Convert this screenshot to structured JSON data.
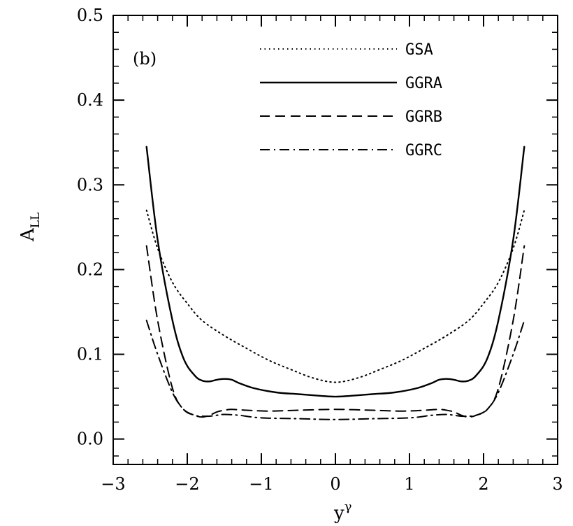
{
  "chart_data": {
    "type": "line",
    "panel_label": "(b)",
    "xlabel": "y",
    "xlabel_sup": "γ",
    "ylabel": "A",
    "ylabel_sub": "LL",
    "xlim": [
      -3,
      3
    ],
    "ylim": [
      -0.03,
      0.5
    ],
    "x_ticks": [
      -3,
      -2,
      -1,
      0,
      1,
      2,
      3
    ],
    "x_tick_labels": [
      "−3",
      "−2",
      "−1",
      "0",
      "1",
      "2",
      "3"
    ],
    "y_ticks": [
      0.0,
      0.1,
      0.2,
      0.3,
      0.4,
      0.5
    ],
    "y_tick_labels": [
      "0.0",
      "0.1",
      "0.2",
      "0.3",
      "0.4",
      "0.5"
    ],
    "legend_position": "top-right",
    "series": [
      {
        "name": "GSA",
        "style": "dotted",
        "x": [
          -2.55,
          -2.4,
          -2.2,
          -2.0,
          -1.8,
          -1.5,
          -1.2,
          -0.9,
          -0.6,
          -0.3,
          0.0,
          0.3,
          0.6,
          0.9,
          1.2,
          1.5,
          1.8,
          2.0,
          2.2,
          2.4,
          2.55
        ],
        "y": [
          0.27,
          0.225,
          0.185,
          0.16,
          0.14,
          0.122,
          0.107,
          0.093,
          0.082,
          0.072,
          0.067,
          0.072,
          0.082,
          0.093,
          0.107,
          0.122,
          0.14,
          0.16,
          0.185,
          0.225,
          0.27
        ]
      },
      {
        "name": "GGRA",
        "style": "solid",
        "x": [
          -2.55,
          -2.4,
          -2.2,
          -2.05,
          -1.9,
          -1.8,
          -1.7,
          -1.6,
          -1.5,
          -1.4,
          -1.3,
          -1.1,
          -0.8,
          -0.5,
          -0.2,
          0.0,
          0.2,
          0.5,
          0.8,
          1.1,
          1.3,
          1.4,
          1.5,
          1.6,
          1.7,
          1.8,
          1.9,
          2.05,
          2.2,
          2.4,
          2.55
        ],
        "y": [
          0.345,
          0.235,
          0.14,
          0.095,
          0.075,
          0.069,
          0.068,
          0.07,
          0.071,
          0.07,
          0.066,
          0.06,
          0.055,
          0.053,
          0.051,
          0.05,
          0.051,
          0.053,
          0.055,
          0.06,
          0.066,
          0.07,
          0.071,
          0.07,
          0.068,
          0.069,
          0.075,
          0.095,
          0.14,
          0.235,
          0.345
        ]
      },
      {
        "name": "GGRB",
        "style": "dashed",
        "x": [
          -2.55,
          -2.4,
          -2.2,
          -2.05,
          -1.9,
          -1.8,
          -1.7,
          -1.6,
          -1.5,
          -1.4,
          -1.2,
          -0.9,
          -0.5,
          0.0,
          0.5,
          0.9,
          1.2,
          1.4,
          1.5,
          1.6,
          1.7,
          1.8,
          1.9,
          2.05,
          2.2,
          2.4,
          2.55
        ],
        "y": [
          0.228,
          0.14,
          0.06,
          0.035,
          0.028,
          0.026,
          0.028,
          0.032,
          0.034,
          0.035,
          0.034,
          0.033,
          0.034,
          0.035,
          0.034,
          0.033,
          0.034,
          0.035,
          0.034,
          0.032,
          0.028,
          0.026,
          0.028,
          0.035,
          0.06,
          0.14,
          0.228
        ]
      },
      {
        "name": "GGRC",
        "style": "dashdot",
        "x": [
          -2.55,
          -2.4,
          -2.2,
          -2.05,
          -1.9,
          -1.8,
          -1.7,
          -1.6,
          -1.5,
          -1.3,
          -1.0,
          -0.5,
          0.0,
          0.5,
          1.0,
          1.3,
          1.5,
          1.6,
          1.7,
          1.8,
          1.9,
          2.05,
          2.2,
          2.4,
          2.55
        ],
        "y": [
          0.14,
          0.1,
          0.055,
          0.035,
          0.028,
          0.027,
          0.027,
          0.028,
          0.029,
          0.028,
          0.025,
          0.024,
          0.023,
          0.024,
          0.025,
          0.028,
          0.029,
          0.028,
          0.027,
          0.027,
          0.028,
          0.035,
          0.055,
          0.1,
          0.14
        ]
      }
    ]
  }
}
